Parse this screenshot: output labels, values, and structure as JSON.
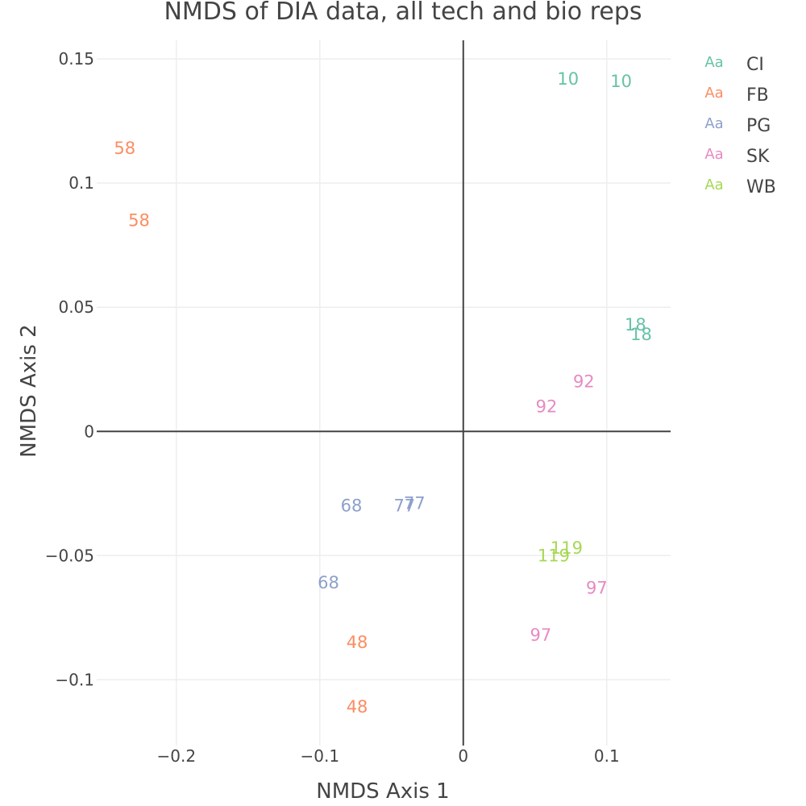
{
  "chart_data": {
    "type": "scatter",
    "title": "NMDS of DIA data, all tech and bio reps",
    "xlabel": "NMDS Axis 1",
    "ylabel": "NMDS Axis 2",
    "xlim": [
      -0.2555,
      0.1445
    ],
    "ylim": [
      -0.1265,
      0.1575
    ],
    "x_ticks": [
      -0.2,
      -0.1,
      0,
      0.1
    ],
    "x_tick_labels": [
      "−0.2",
      "−0.1",
      "0",
      "0.1"
    ],
    "y_ticks": [
      -0.1,
      -0.05,
      0,
      0.05,
      0.1,
      0.15
    ],
    "y_tick_labels": [
      "−0.1",
      "−0.05",
      "0",
      "0.05",
      "0.1",
      "0.15"
    ],
    "grid": true,
    "zerolines": true,
    "legend_position": "right",
    "legend_swatch_text": "Aa",
    "series": [
      {
        "name": "CI",
        "color": "#66c2a5",
        "points": [
          {
            "x": 0.073,
            "y": 0.142,
            "label": "10"
          },
          {
            "x": 0.11,
            "y": 0.141,
            "label": "10"
          },
          {
            "x": 0.12,
            "y": 0.043,
            "label": "18"
          },
          {
            "x": 0.124,
            "y": 0.039,
            "label": "18"
          }
        ]
      },
      {
        "name": "FB",
        "color": "#fc8d62",
        "points": [
          {
            "x": -0.236,
            "y": 0.114,
            "label": "58"
          },
          {
            "x": -0.226,
            "y": 0.085,
            "label": "58"
          },
          {
            "x": -0.074,
            "y": -0.085,
            "label": "48"
          },
          {
            "x": -0.074,
            "y": -0.111,
            "label": "48"
          }
        ]
      },
      {
        "name": "PG",
        "color": "#8da0cb",
        "points": [
          {
            "x": -0.078,
            "y": -0.03,
            "label": "68"
          },
          {
            "x": -0.094,
            "y": -0.061,
            "label": "68"
          },
          {
            "x": -0.041,
            "y": -0.03,
            "label": "77"
          },
          {
            "x": -0.034,
            "y": -0.029,
            "label": "77"
          }
        ]
      },
      {
        "name": "SK",
        "color": "#e78ac3",
        "points": [
          {
            "x": 0.084,
            "y": 0.02,
            "label": "92"
          },
          {
            "x": 0.058,
            "y": 0.01,
            "label": "92"
          },
          {
            "x": 0.093,
            "y": -0.063,
            "label": "97"
          },
          {
            "x": 0.054,
            "y": -0.082,
            "label": "97"
          }
        ]
      },
      {
        "name": "WB",
        "color": "#a6d854",
        "points": [
          {
            "x": 0.072,
            "y": -0.047,
            "label": "119"
          },
          {
            "x": 0.063,
            "y": -0.05,
            "label": "119"
          }
        ]
      }
    ]
  }
}
